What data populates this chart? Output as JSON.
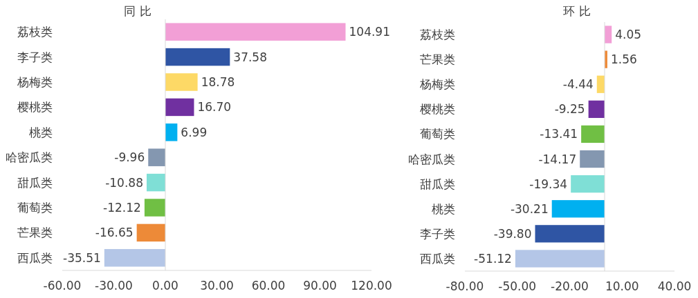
{
  "chart_data": [
    {
      "type": "bar",
      "orientation": "horizontal",
      "title": "同 比",
      "categories": [
        "荔枝类",
        "李子类",
        "杨梅类",
        "樱桃类",
        "桃类",
        "哈密瓜类",
        "甜瓜类",
        "葡萄类",
        "芒果类",
        "西瓜类"
      ],
      "values": [
        104.91,
        37.58,
        18.78,
        16.7,
        6.99,
        -9.96,
        -10.88,
        -12.12,
        -16.65,
        -35.51
      ],
      "colors": [
        "#f29fd6",
        "#2f55a4",
        "#fdd966",
        "#7030a0",
        "#00b0f0",
        "#8497b0",
        "#7fdfd6",
        "#70bf44",
        "#ed8a38",
        "#b4c6e7"
      ],
      "value_labels": [
        "104.91",
        "37.58",
        "18.78",
        "16.70",
        "6.99",
        "-9.96",
        "-10.88",
        "-12.12",
        "-16.65",
        "-35.51"
      ],
      "xlim": [
        -60,
        120
      ],
      "xticks": [
        {
          "value": -60,
          "label": "-60.00"
        },
        {
          "value": -30,
          "label": "-30.00"
        },
        {
          "value": 0,
          "label": "0.00"
        },
        {
          "value": 30,
          "label": "30.00"
        },
        {
          "value": 60,
          "label": "60.00"
        },
        {
          "value": 90,
          "label": "90.00"
        },
        {
          "value": 120,
          "label": "120.00"
        }
      ]
    },
    {
      "type": "bar",
      "orientation": "horizontal",
      "title": "环 比",
      "categories": [
        "荔枝类",
        "芒果类",
        "杨梅类",
        "樱桃类",
        "葡萄类",
        "哈密瓜类",
        "甜瓜类",
        "桃类",
        "李子类",
        "西瓜类"
      ],
      "values": [
        4.05,
        1.56,
        -4.44,
        -9.25,
        -13.41,
        -14.17,
        -19.34,
        -30.21,
        -39.8,
        -51.12
      ],
      "colors": [
        "#f29fd6",
        "#ed8a38",
        "#fdd966",
        "#7030a0",
        "#70bf44",
        "#8497b0",
        "#7fdfd6",
        "#00b0f0",
        "#2f55a4",
        "#b4c6e7"
      ],
      "value_labels": [
        "4.05",
        "1.56",
        "-4.44",
        "-9.25",
        "-13.41",
        "-14.17",
        "-19.34",
        "-30.21",
        "-39.80",
        "-51.12"
      ],
      "xlim": [
        -80,
        40
      ],
      "xticks": [
        {
          "value": -80,
          "label": "-80.00"
        },
        {
          "value": -50,
          "label": "-50.00"
        },
        {
          "value": -20,
          "label": "-20.00"
        },
        {
          "value": 10,
          "label": "10.00"
        },
        {
          "value": 40,
          "label": "40.00"
        }
      ]
    }
  ]
}
